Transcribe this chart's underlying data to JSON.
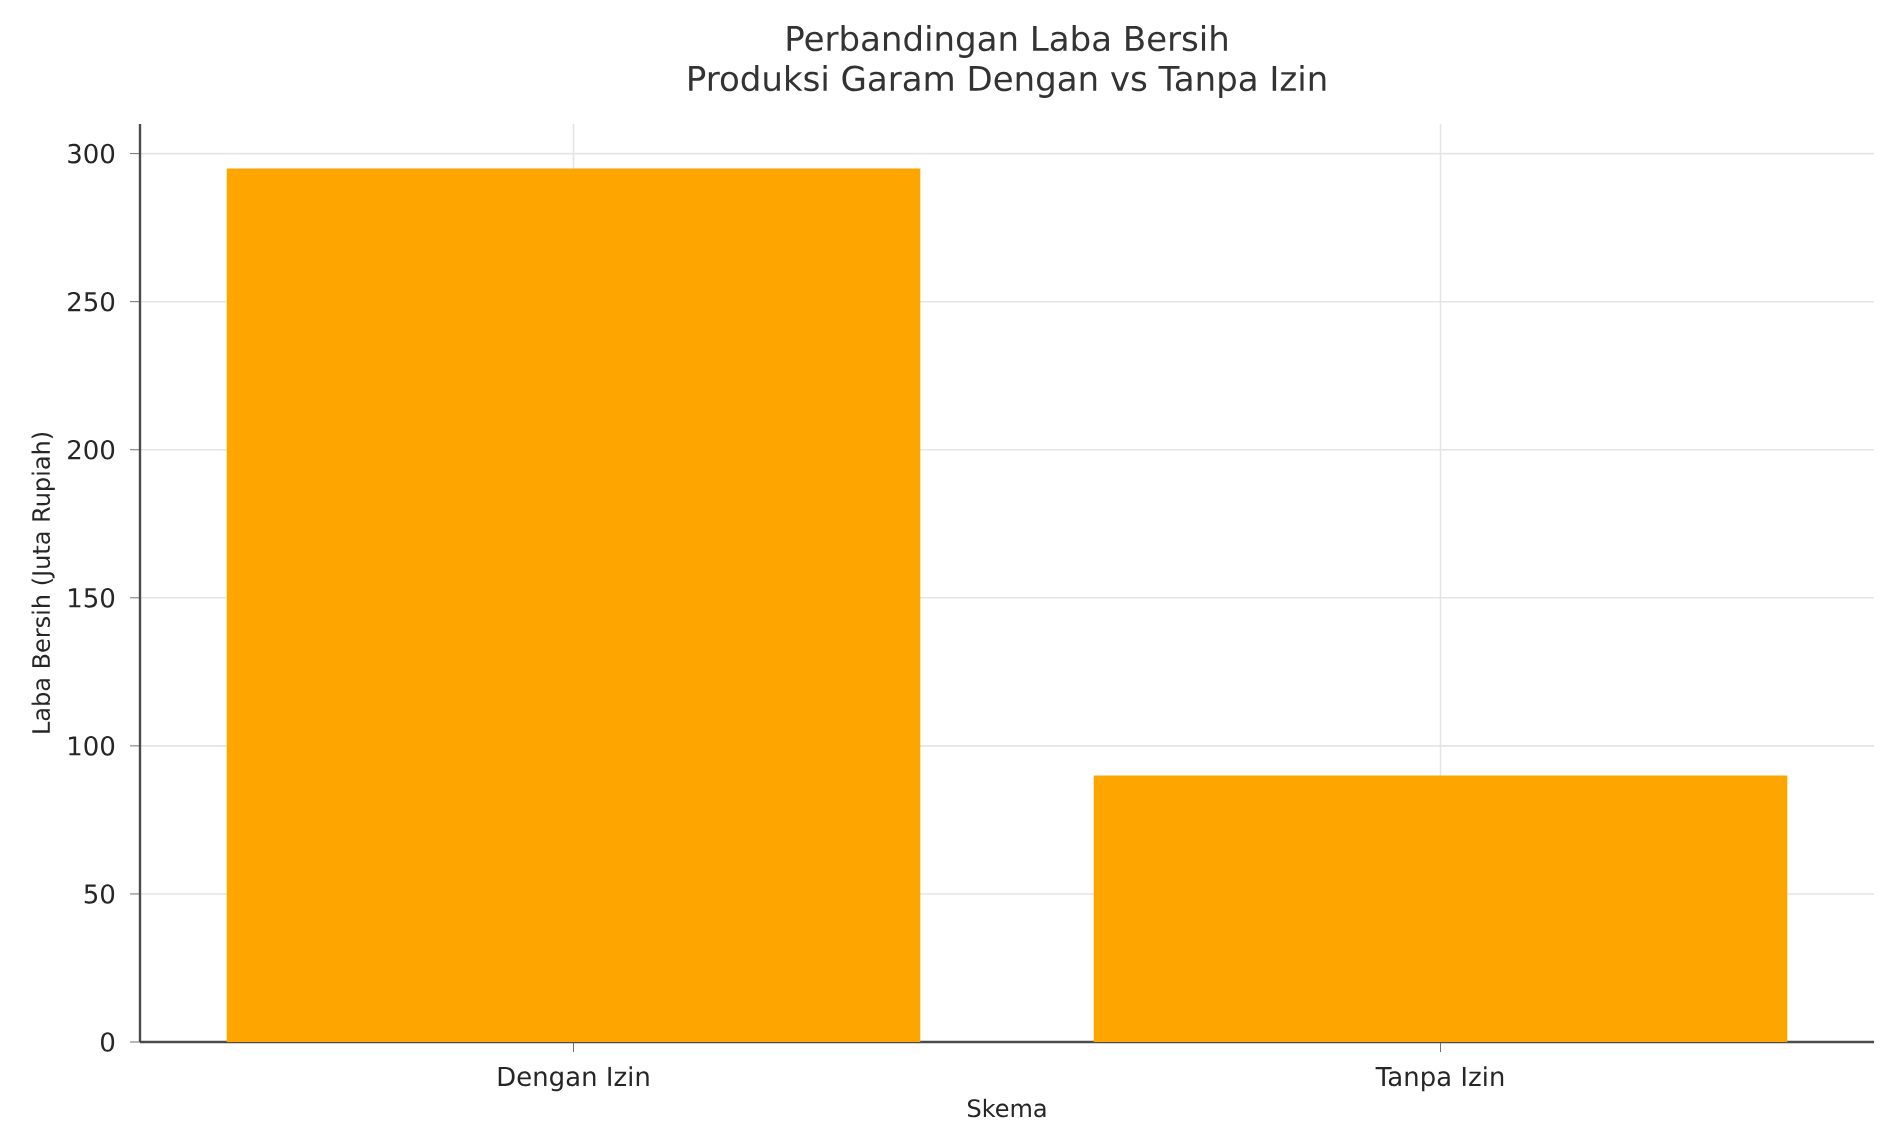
{
  "chart_data": {
    "type": "bar",
    "title": "Perbandingan Laba Bersih",
    "subtitle": "Produksi Garam Dengan vs Tanpa Izin",
    "xlabel": "Skema",
    "ylabel": "Laba Bersih (Juta Rupiah)",
    "categories": [
      "Dengan Izin",
      "Tanpa Izin"
    ],
    "values": [
      295,
      90
    ],
    "color": "#ffa500",
    "ylim": [
      0,
      310
    ],
    "yticks": [
      0,
      50,
      100,
      150,
      200,
      250,
      300
    ],
    "grid": true
  }
}
